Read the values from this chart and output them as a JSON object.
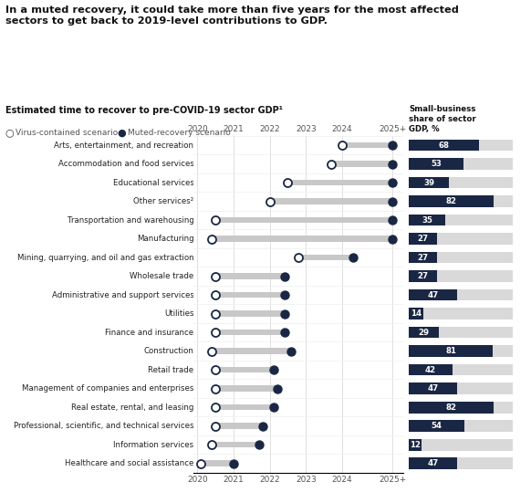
{
  "title": "In a muted recovery, it could take more than five years for the most affected\nsectors to get back to 2019-level contributions to GDP.",
  "subtitle": "Estimated time to recover to pre-COVID-19 sector GDP¹",
  "legend_open": "Virus-contained scenario",
  "legend_filled": "Muted-recovery scenario",
  "right_panel_title": "Small-business\nshare of sector\nGDP, %",
  "sectors": [
    "Arts, entertainment, and recreation",
    "Accommodation and food services",
    "Educational services",
    "Other services²",
    "Transportation and warehousing",
    "Manufacturing",
    "Mining, quarrying, and oil and gas extraction",
    "Wholesale trade",
    "Administrative and support services",
    "Utilities",
    "Finance and insurance",
    "Construction",
    "Retail trade",
    "Management of companies and enterprises",
    "Real estate, rental, and leasing",
    "Professional, scientific, and technical services",
    "Information services",
    "Healthcare and social assistance"
  ],
  "open_dot": [
    2024.0,
    2023.7,
    2022.5,
    2022.0,
    2020.5,
    2020.4,
    2022.8,
    2020.5,
    2020.5,
    2020.5,
    2020.5,
    2020.4,
    2020.5,
    2020.5,
    2020.5,
    2020.5,
    2020.4,
    2020.1
  ],
  "filled_dot": [
    2025.4,
    2025.4,
    2025.4,
    2025.4,
    2025.4,
    2025.4,
    2024.3,
    2022.4,
    2022.4,
    2022.4,
    2022.4,
    2022.6,
    2022.1,
    2022.2,
    2022.1,
    2021.8,
    2021.7,
    2021.0
  ],
  "gdp_values": [
    68,
    53,
    39,
    82,
    35,
    27,
    27,
    27,
    47,
    14,
    29,
    81,
    42,
    47,
    82,
    54,
    12,
    47
  ],
  "bar_color_dark": "#1a2744",
  "bar_color_light": "#d9d9d9",
  "bar_gray": "#c8c8c8",
  "dot_open_facecolor": "#ffffff",
  "dot_filled_color": "#1a2744",
  "dot_edge_color": "#1a2744",
  "grid_color": "#e0e0e0",
  "year_min": 2020,
  "year_max": 2025.7,
  "year_ticks_labels": [
    "2020",
    "2021",
    "2022",
    "2023",
    "2024",
    "2025+"
  ],
  "year_tick_vals": [
    2020,
    2021,
    2022,
    2023,
    2024,
    2025.4
  ]
}
